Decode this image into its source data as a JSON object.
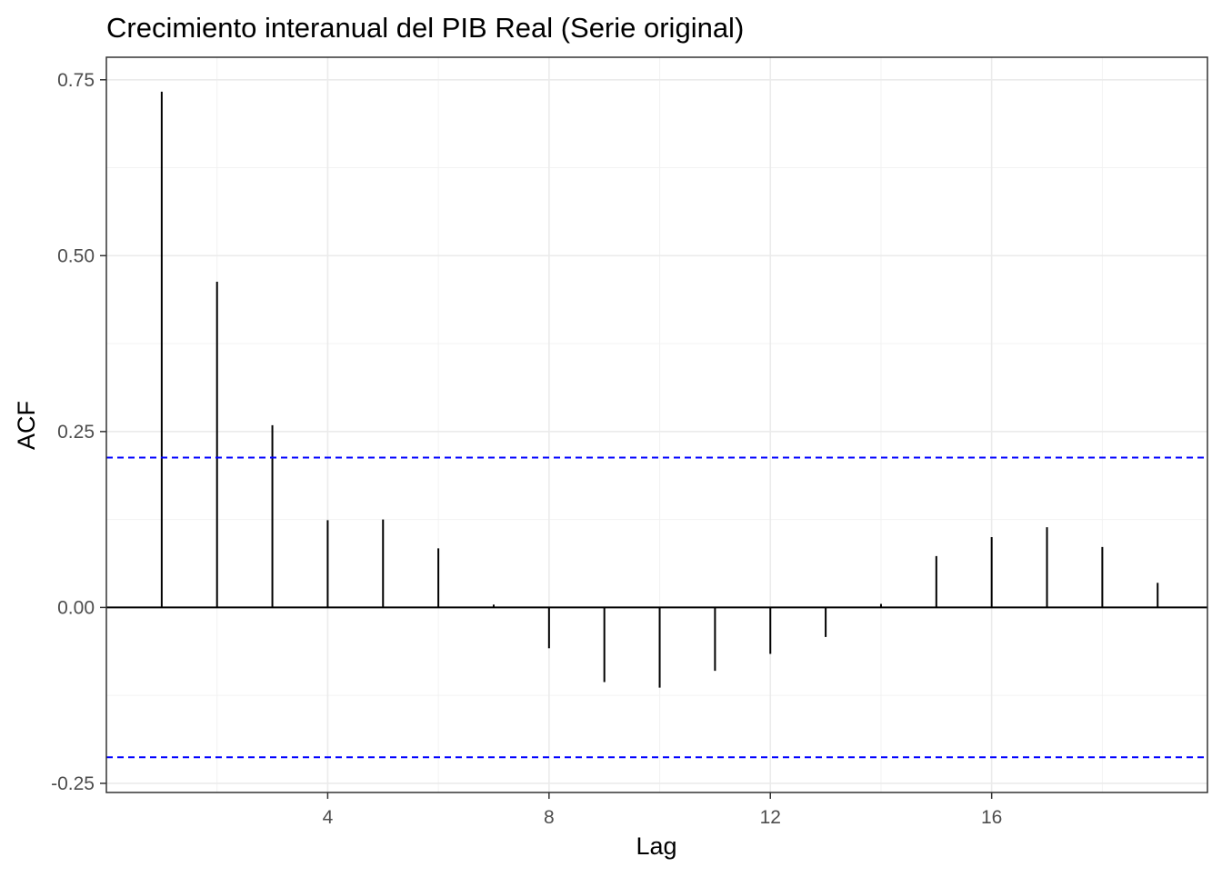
{
  "chart_data": {
    "type": "bar",
    "subtype": "acf-correlogram",
    "title": "Crecimiento interanual del PIB Real (Serie original)",
    "xlabel": "Lag",
    "ylabel": "ACF",
    "x": [
      1,
      2,
      3,
      4,
      5,
      6,
      7,
      8,
      9,
      10,
      11,
      12,
      13,
      14,
      15,
      16,
      17,
      18,
      19
    ],
    "values": [
      0.733,
      0.463,
      0.259,
      0.124,
      0.125,
      0.084,
      0.004,
      -0.058,
      -0.106,
      -0.114,
      -0.09,
      -0.066,
      -0.042,
      0.005,
      0.073,
      0.1,
      0.114,
      0.086,
      0.035
    ],
    "confidence_band": [
      -0.213,
      0.213
    ],
    "confidence_band_color": "#0000ff",
    "xlim": [
      0.0,
      19.9
    ],
    "ylim": [
      -0.263,
      0.782
    ],
    "x_ticks": [
      4,
      8,
      12,
      16
    ],
    "x_tick_labels": [
      "4",
      "8",
      "12",
      "16"
    ],
    "y_ticks": [
      -0.25,
      0.0,
      0.25,
      0.5,
      0.75
    ],
    "y_tick_labels": [
      "-0.25",
      "0.00",
      "0.25",
      "0.50",
      "0.75"
    ],
    "grid": true,
    "legend": "none"
  }
}
